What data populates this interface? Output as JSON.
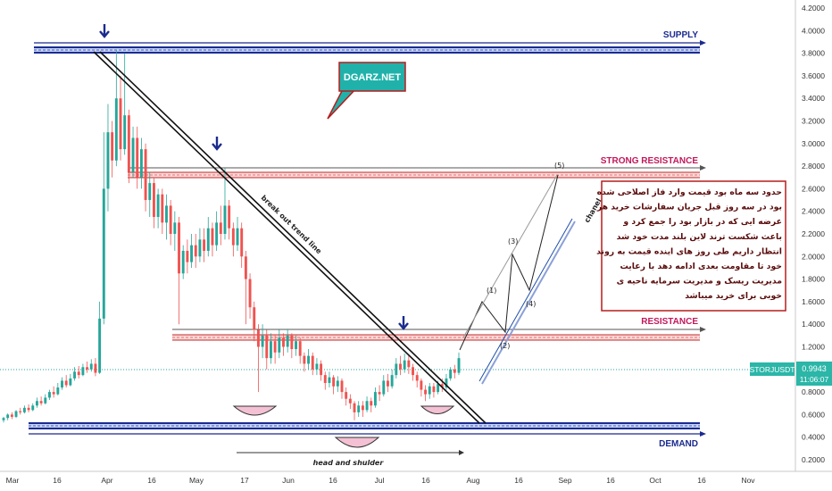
{
  "chart_data": {
    "type": "candlestick",
    "symbol": "STORJUSDT",
    "last_price": "0.9943",
    "countdown": "11:06:07",
    "y_axis": {
      "scale": "linear",
      "ticks": [
        "4.2000",
        "4.0000",
        "3.8000",
        "3.6000",
        "3.4000",
        "3.2000",
        "3.0000",
        "2.8000",
        "2.6000",
        "2.4000",
        "2.2000",
        "2.0000",
        "1.8000",
        "1.6000",
        "1.4000",
        "1.2000",
        "1.0000",
        "0.8000",
        "0.6000",
        "0.4000",
        "0.2000"
      ]
    },
    "x_axis": {
      "ticks": [
        "Mar",
        "16",
        "Apr",
        "16",
        "May",
        "17",
        "Jun",
        "16",
        "Jul",
        "16",
        "Aug",
        "16",
        "Sep",
        "16",
        "Oct",
        "16",
        "Nov"
      ]
    },
    "zones": {
      "supply": {
        "label": "SUPPLY",
        "price_low": 3.8,
        "price_high": 3.87
      },
      "strong_resistance": {
        "label": "STRONG RESISTANCE",
        "price_low": 2.69,
        "price_high": 2.75
      },
      "resistance": {
        "label": "RESISTANCE",
        "price_low": 1.27,
        "price_high": 1.33
      },
      "demand": {
        "label": "DEMAND",
        "price_low": 0.47,
        "price_high": 0.52
      }
    },
    "trendline_label": "break out trend line",
    "pattern_label": "head and shulder",
    "channel_label": "chanel",
    "wave_labels": [
      "(1)",
      "(2)",
      "(3)",
      "(4)",
      "(5)"
    ],
    "brand_bubble": "DGARZ.NET",
    "note_lines": [
      "حدود سه ماه بود قیمت وارد فاز اصلاحی شده",
      "بود در سه روز قبل جریان سفارشات خرید هر",
      "عرضه ایی که در بازار بود را جمع کرد و",
      "باعث شکست ترند لاین بلند مدت خود شد",
      "انتظار داریم طی روز های اینده قیمت به روند",
      "خود تا مقاومت بعدی ادامه دهد با رعایت",
      "مدیریت ریسک و مدیریت سرمایه ناحیه ی",
      "خوبی برای خرید میباشد"
    ],
    "colors": {
      "up": "#26a69a",
      "down": "#ef5350",
      "zone_blue": "#1a2b8f",
      "zone_red": "#e06060",
      "label_tag": "#2bb6a8",
      "bubble": "#20b2aa",
      "note_border": "#b71c1c",
      "arc": "#f3c1d3"
    },
    "candles": [
      [
        0.55,
        0.57,
        0.53,
        0.58
      ],
      [
        0.57,
        0.6,
        0.55,
        0.61
      ],
      [
        0.6,
        0.58,
        0.56,
        0.62
      ],
      [
        0.58,
        0.63,
        0.57,
        0.64
      ],
      [
        0.63,
        0.62,
        0.6,
        0.66
      ],
      [
        0.62,
        0.66,
        0.61,
        0.68
      ],
      [
        0.66,
        0.64,
        0.62,
        0.69
      ],
      [
        0.64,
        0.68,
        0.63,
        0.7
      ],
      [
        0.68,
        0.72,
        0.66,
        0.75
      ],
      [
        0.72,
        0.7,
        0.68,
        0.76
      ],
      [
        0.7,
        0.75,
        0.69,
        0.78
      ],
      [
        0.75,
        0.8,
        0.73,
        0.82
      ],
      [
        0.8,
        0.78,
        0.75,
        0.85
      ],
      [
        0.78,
        0.84,
        0.77,
        0.88
      ],
      [
        0.84,
        0.9,
        0.82,
        0.93
      ],
      [
        0.9,
        0.86,
        0.84,
        0.95
      ],
      [
        0.86,
        0.92,
        0.85,
        0.96
      ],
      [
        0.92,
        0.98,
        0.9,
        1.02
      ],
      [
        0.98,
        0.95,
        0.92,
        1.03
      ],
      [
        0.95,
        1.02,
        0.94,
        1.05
      ],
      [
        1.02,
        1.0,
        0.97,
        1.07
      ],
      [
        1.0,
        1.05,
        0.98,
        1.09
      ],
      [
        1.05,
        0.97,
        0.94,
        1.1
      ],
      [
        0.97,
        1.45,
        0.96,
        1.6
      ],
      [
        1.45,
        2.6,
        1.4,
        3.1
      ],
      [
        2.6,
        3.1,
        2.4,
        3.35
      ],
      [
        3.1,
        2.85,
        2.7,
        3.2
      ],
      [
        2.85,
        3.4,
        2.8,
        3.83
      ],
      [
        3.4,
        2.95,
        2.85,
        3.6
      ],
      [
        2.95,
        3.25,
        2.9,
        3.8
      ],
      [
        3.25,
        2.75,
        2.65,
        3.3
      ],
      [
        2.75,
        3.05,
        2.7,
        3.15
      ],
      [
        3.05,
        2.7,
        2.6,
        3.15
      ],
      [
        2.7,
        2.95,
        2.6,
        3.05
      ],
      [
        2.95,
        2.5,
        2.4,
        3.0
      ],
      [
        2.5,
        2.65,
        2.35,
        2.75
      ],
      [
        2.65,
        2.35,
        2.25,
        2.7
      ],
      [
        2.35,
        2.55,
        2.25,
        2.6
      ],
      [
        2.55,
        2.3,
        2.2,
        2.6
      ],
      [
        2.3,
        2.45,
        2.15,
        2.55
      ],
      [
        2.45,
        2.2,
        2.1,
        2.5
      ],
      [
        2.2,
        2.3,
        2.05,
        2.4
      ],
      [
        2.3,
        1.85,
        1.4,
        2.35
      ],
      [
        1.85,
        2.05,
        1.8,
        2.1
      ],
      [
        2.05,
        1.95,
        1.85,
        2.15
      ],
      [
        1.95,
        2.1,
        1.9,
        2.2
      ],
      [
        2.1,
        2.0,
        1.9,
        2.2
      ],
      [
        2.0,
        2.15,
        1.95,
        2.25
      ],
      [
        2.15,
        2.05,
        1.95,
        2.25
      ],
      [
        2.05,
        2.25,
        2.0,
        2.35
      ],
      [
        2.25,
        2.1,
        2.0,
        2.3
      ],
      [
        2.1,
        2.3,
        2.05,
        2.4
      ],
      [
        2.3,
        2.2,
        2.1,
        2.45
      ],
      [
        2.2,
        2.45,
        2.15,
        2.78
      ],
      [
        2.45,
        2.25,
        2.15,
        2.5
      ],
      [
        2.25,
        2.1,
        2.0,
        2.3
      ],
      [
        2.1,
        2.25,
        2.05,
        2.35
      ],
      [
        2.25,
        2.0,
        1.9,
        2.3
      ],
      [
        2.0,
        1.8,
        1.4,
        2.05
      ],
      [
        1.8,
        1.55,
        1.45,
        1.85
      ],
      [
        1.55,
        1.35,
        1.25,
        1.6
      ],
      [
        1.35,
        1.2,
        0.8,
        1.4
      ],
      [
        1.2,
        1.3,
        1.1,
        1.4
      ],
      [
        1.3,
        1.1,
        1.0,
        1.35
      ],
      [
        1.1,
        1.25,
        1.05,
        1.32
      ],
      [
        1.25,
        1.15,
        1.05,
        1.3
      ],
      [
        1.15,
        1.28,
        1.1,
        1.35
      ],
      [
        1.28,
        1.2,
        1.12,
        1.32
      ],
      [
        1.2,
        1.3,
        1.15,
        1.36
      ],
      [
        1.3,
        1.18,
        1.1,
        1.32
      ],
      [
        1.18,
        1.25,
        1.12,
        1.3
      ],
      [
        1.25,
        1.12,
        1.05,
        1.28
      ],
      [
        1.12,
        1.05,
        0.98,
        1.15
      ],
      [
        1.05,
        1.12,
        1.0,
        1.18
      ],
      [
        1.12,
        1.0,
        0.95,
        1.15
      ],
      [
        1.0,
        1.05,
        0.95,
        1.1
      ],
      [
        1.05,
        0.95,
        0.9,
        1.08
      ],
      [
        0.95,
        0.88,
        0.82,
        0.98
      ],
      [
        0.88,
        0.93,
        0.84,
        0.98
      ],
      [
        0.93,
        0.85,
        0.78,
        0.95
      ],
      [
        0.85,
        0.9,
        0.8,
        0.94
      ],
      [
        0.9,
        0.8,
        0.74,
        0.92
      ],
      [
        0.8,
        0.74,
        0.68,
        0.84
      ],
      [
        0.74,
        0.7,
        0.65,
        0.78
      ],
      [
        0.7,
        0.62,
        0.55,
        0.72
      ],
      [
        0.62,
        0.68,
        0.58,
        0.72
      ],
      [
        0.68,
        0.64,
        0.58,
        0.72
      ],
      [
        0.64,
        0.72,
        0.62,
        0.76
      ],
      [
        0.72,
        0.68,
        0.62,
        0.75
      ],
      [
        0.68,
        0.8,
        0.66,
        0.84
      ],
      [
        0.8,
        0.78,
        0.72,
        0.86
      ],
      [
        0.78,
        0.9,
        0.76,
        0.95
      ],
      [
        0.9,
        0.85,
        0.8,
        0.96
      ],
      [
        0.85,
        0.95,
        0.83,
        1.0
      ],
      [
        0.95,
        1.05,
        0.92,
        1.1
      ],
      [
        1.05,
        1.0,
        0.95,
        1.12
      ],
      [
        1.0,
        1.08,
        0.97,
        1.14
      ],
      [
        1.08,
        1.02,
        0.96,
        1.12
      ],
      [
        1.02,
        0.95,
        0.9,
        1.05
      ],
      [
        0.95,
        0.9,
        0.84,
        0.98
      ],
      [
        0.9,
        0.82,
        0.76,
        0.92
      ],
      [
        0.82,
        0.78,
        0.72,
        0.86
      ],
      [
        0.78,
        0.85,
        0.74,
        0.88
      ],
      [
        0.85,
        0.8,
        0.75,
        0.88
      ],
      [
        0.8,
        0.87,
        0.78,
        0.9
      ],
      [
        0.87,
        0.84,
        0.8,
        0.92
      ],
      [
        0.84,
        0.92,
        0.82,
        0.96
      ],
      [
        0.92,
        1.0,
        0.9,
        1.02
      ],
      [
        1.0,
        0.97,
        0.92,
        1.04
      ],
      [
        0.97,
        1.1,
        0.95,
        1.15
      ]
    ]
  }
}
